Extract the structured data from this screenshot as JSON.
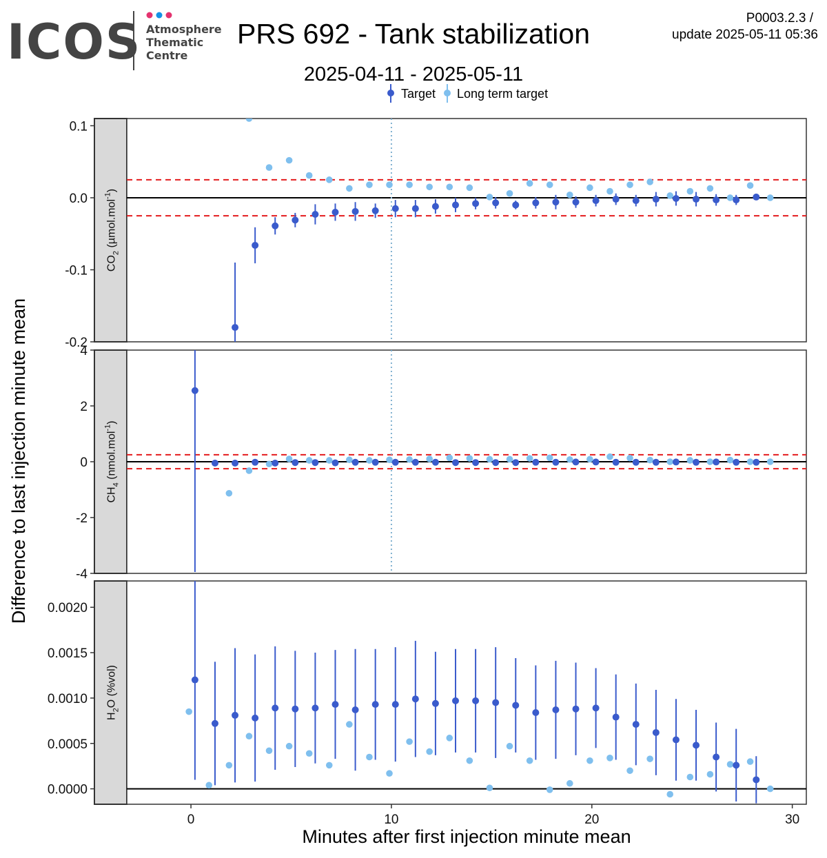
{
  "header": {
    "logo_text": "ICOS",
    "logo_sub": [
      "Atmosphere",
      "Thematic",
      "Centre"
    ],
    "logo_dot_colors": [
      "#e4336f",
      "#1592e6",
      "#e4336f"
    ],
    "title": "PRS 692 - Tank stabilization",
    "subtitle": "2025-04-11 - 2025-05-11",
    "code": "P0003.2.3 /",
    "update": "update  2025-05-11 05:36"
  },
  "legend": {
    "items": [
      {
        "label": "Target",
        "color": "#3a5bcc"
      },
      {
        "label": "Long term target",
        "color": "#7fbfee"
      }
    ]
  },
  "colors": {
    "target": "#3a5bcc",
    "long_term": "#7fbfee",
    "threshold": "#e41a1c",
    "vline": "#7fb0d0",
    "strip_bg": "#d9d9d9"
  },
  "chart_data": {
    "type": "scatter",
    "xlabel": "Minutes after first injection minute mean",
    "ylabel": "Difference to last injection minute mean",
    "xlim": [
      -3.2,
      30.7
    ],
    "xticks": [
      0,
      10,
      20,
      30
    ],
    "vline_x": 10,
    "panels": [
      {
        "id": "co2",
        "strip_main": "CO",
        "strip_sub": "2",
        "strip_unit": " (µmol.mol",
        "strip_sup": "-1",
        "strip_end": ")",
        "ylim": [
          -0.2,
          0.11
        ],
        "yticks": [
          0.1,
          0.0,
          -0.1,
          -0.2
        ],
        "ytick_labels": [
          "0.1",
          "0.0",
          "-0.1",
          "-0.2"
        ],
        "thresholds": [
          0.025,
          -0.025
        ],
        "target": {
          "x": [
            2.2,
            3.2,
            4.2,
            5.2,
            6.2,
            7.2,
            8.2,
            9.2,
            10.2,
            11.2,
            12.2,
            13.2,
            14.2,
            15.2,
            16.2,
            17.2,
            18.2,
            19.2,
            20.2,
            21.2,
            22.2,
            23.2,
            24.2,
            25.2,
            26.2,
            27.2,
            28.2
          ],
          "y": [
            -0.18,
            -0.066,
            -0.039,
            -0.031,
            -0.023,
            -0.02,
            -0.019,
            -0.018,
            -0.015,
            -0.015,
            -0.012,
            -0.01,
            -0.008,
            -0.007,
            -0.01,
            -0.007,
            -0.006,
            -0.006,
            -0.004,
            -0.002,
            -0.004,
            -0.002,
            -0.001,
            -0.002,
            -0.003,
            -0.003,
            0.001
          ],
          "err": [
            0.09,
            0.025,
            0.012,
            0.01,
            0.014,
            0.012,
            0.013,
            0.01,
            0.012,
            0.012,
            0.01,
            0.01,
            0.008,
            0.008,
            0.006,
            0.008,
            0.01,
            0.008,
            0.008,
            0.008,
            0.008,
            0.01,
            0.01,
            0.01,
            0.008,
            0.007,
            0.004
          ]
        },
        "long_term": {
          "x": [
            2.9,
            3.9,
            4.9,
            5.9,
            6.9,
            7.9,
            8.9,
            9.9,
            10.9,
            11.9,
            12.9,
            13.9,
            14.9,
            15.9,
            16.9,
            17.9,
            18.9,
            19.9,
            20.9,
            21.9,
            22.9,
            23.9,
            24.9,
            25.9,
            26.9,
            27.9,
            28.9
          ],
          "y": [
            0.11,
            0.042,
            0.052,
            0.031,
            0.025,
            0.013,
            0.018,
            0.018,
            0.018,
            0.015,
            0.015,
            0.014,
            0.001,
            0.006,
            0.02,
            0.018,
            0.004,
            0.014,
            0.009,
            0.018,
            0.022,
            0.003,
            0.009,
            0.013,
            0.0,
            0.017,
            0.0
          ]
        }
      },
      {
        "id": "ch4",
        "strip_main": "CH",
        "strip_sub": "4",
        "strip_unit": " (nmol.mol",
        "strip_sup": "-1",
        "strip_end": ")",
        "ylim": [
          -4,
          4
        ],
        "yticks": [
          4,
          2,
          0,
          -2,
          -4
        ],
        "ytick_labels": [
          "4",
          "2",
          "0",
          "-2",
          "-4"
        ],
        "thresholds": [
          0.25,
          -0.25
        ],
        "target": {
          "x": [
            0.2,
            1.2,
            2.2,
            3.2,
            4.2,
            5.2,
            6.2,
            7.2,
            8.2,
            9.2,
            10.2,
            11.2,
            12.2,
            13.2,
            14.2,
            15.2,
            16.2,
            17.2,
            18.2,
            19.2,
            20.2,
            21.2,
            22.2,
            23.2,
            24.2,
            25.2,
            26.2,
            27.2,
            28.2
          ],
          "y": [
            2.55,
            -0.05,
            -0.05,
            -0.02,
            -0.05,
            -0.03,
            -0.03,
            -0.04,
            -0.02,
            -0.02,
            -0.02,
            -0.02,
            -0.02,
            -0.03,
            -0.03,
            -0.03,
            -0.03,
            -0.02,
            -0.02,
            -0.01,
            -0.01,
            -0.02,
            -0.02,
            -0.02,
            -0.01,
            -0.02,
            -0.01,
            -0.02,
            -0.02
          ],
          "err": [
            6.5,
            0.05,
            0.05,
            0.05,
            0.05,
            0.05,
            0.05,
            0.05,
            0.05,
            0.05,
            0.05,
            0.05,
            0.05,
            0.05,
            0.05,
            0.05,
            0.05,
            0.05,
            0.05,
            0.05,
            0.05,
            0.05,
            0.05,
            0.05,
            0.05,
            0.05,
            0.05,
            0.05,
            0.05
          ]
        },
        "long_term": {
          "x": [
            1.9,
            2.9,
            3.9,
            4.9,
            5.9,
            6.9,
            7.9,
            8.9,
            9.9,
            10.9,
            11.9,
            12.9,
            13.9,
            14.9,
            15.9,
            16.9,
            17.9,
            18.9,
            19.9,
            20.9,
            21.9,
            22.9,
            23.9,
            24.9,
            25.9,
            26.9,
            27.9,
            28.9
          ],
          "y": [
            -1.13,
            -0.32,
            -0.08,
            0.1,
            0.05,
            0.05,
            0.07,
            0.05,
            0.07,
            0.08,
            0.1,
            0.14,
            0.12,
            0.09,
            0.09,
            0.12,
            0.14,
            0.08,
            0.09,
            0.18,
            0.13,
            0.06,
            0.0,
            0.05,
            0.0,
            0.06,
            0.0,
            0.0
          ]
        }
      },
      {
        "id": "h2o",
        "strip_main": "H",
        "strip_sub": "2",
        "strip_unit": "O (%vol)",
        "strip_sup": "",
        "strip_end": "",
        "ylim": [
          -0.00017,
          0.00229
        ],
        "yticks": [
          0.002,
          0.0015,
          0.001,
          0.0005,
          0.0
        ],
        "ytick_labels": [
          "0.0020",
          "0.0015",
          "0.0010",
          "0.0005",
          "0.0000"
        ],
        "thresholds": [],
        "target": {
          "x": [
            0.2,
            1.2,
            2.2,
            3.2,
            4.2,
            5.2,
            6.2,
            7.2,
            8.2,
            9.2,
            10.2,
            11.2,
            12.2,
            13.2,
            14.2,
            15.2,
            16.2,
            17.2,
            18.2,
            19.2,
            20.2,
            21.2,
            22.2,
            23.2,
            24.2,
            25.2,
            26.2,
            27.2,
            28.2
          ],
          "y": [
            0.0012,
            0.00072,
            0.00081,
            0.00078,
            0.00089,
            0.00088,
            0.00089,
            0.00093,
            0.00087,
            0.00093,
            0.00093,
            0.00099,
            0.00094,
            0.00097,
            0.00097,
            0.00095,
            0.00092,
            0.00084,
            0.00087,
            0.00088,
            0.00089,
            0.00079,
            0.00071,
            0.00062,
            0.00054,
            0.00048,
            0.00035,
            0.00026,
            0.0001
          ],
          "err": [
            0.0011,
            0.00068,
            0.00074,
            0.0007,
            0.00068,
            0.00064,
            0.00061,
            0.0006,
            0.00067,
            0.00061,
            0.00063,
            0.00064,
            0.00057,
            0.00057,
            0.00057,
            0.00061,
            0.00052,
            0.00052,
            0.00054,
            0.00051,
            0.00044,
            0.00047,
            0.00045,
            0.00047,
            0.00045,
            0.00039,
            0.00038,
            0.0004,
            0.00026
          ]
        },
        "long_term": {
          "x": [
            -0.1,
            0.9,
            1.9,
            2.9,
            3.9,
            4.9,
            5.9,
            6.9,
            7.9,
            8.9,
            9.9,
            10.9,
            11.9,
            12.9,
            13.9,
            14.9,
            15.9,
            16.9,
            17.9,
            18.9,
            19.9,
            20.9,
            21.9,
            22.9,
            23.9,
            24.9,
            25.9,
            26.9,
            27.9,
            28.9
          ],
          "y": [
            0.00085,
            4e-05,
            0.00026,
            0.00058,
            0.00042,
            0.00047,
            0.00039,
            0.00026,
            0.00071,
            0.00035,
            0.00017,
            0.00052,
            0.00041,
            0.00056,
            0.00031,
            1e-05,
            0.00047,
            0.00031,
            -1e-05,
            6e-05,
            0.00031,
            0.00034,
            0.0002,
            0.00033,
            -6e-05,
            0.00013,
            0.00016,
            0.00027,
            0.0003,
            0.0
          ]
        }
      }
    ]
  }
}
